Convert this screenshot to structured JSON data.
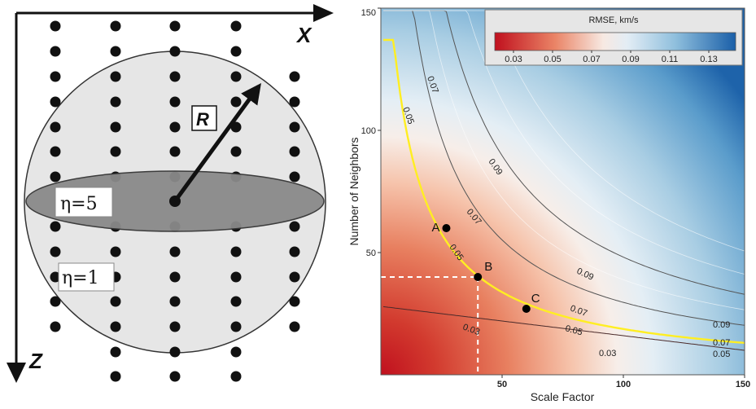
{
  "left_diagram": {
    "x_axis_label": "X",
    "z_axis_label": "Z",
    "radius_label": "R",
    "eta_inner_label": "η=5",
    "eta_outer_label": "η=1"
  },
  "right_chart": {
    "colorbar_title": "RMSE, km/s",
    "colorbar_ticks": [
      "0.03",
      "0.05",
      "0.07",
      "0.09",
      "0.11",
      "0.13"
    ],
    "xlabel": "Scale Factor",
    "ylabel": "Number of Neighbors",
    "x_ticks": [
      "50",
      "100",
      "150"
    ],
    "y_ticks": [
      "50",
      "100",
      "150"
    ],
    "points": [
      {
        "label": "A"
      },
      {
        "label": "B"
      },
      {
        "label": "C"
      }
    ],
    "contour_labels": [
      "0.07",
      "0.05",
      "0.09",
      "0.07",
      "0.05",
      "0.09",
      "0.07",
      "0.05",
      "0.03",
      "0.09",
      "0.07",
      "0.05",
      "0.03"
    ]
  },
  "chart_data": {
    "type": "heatmap",
    "title": "",
    "xlabel": "Scale Factor",
    "ylabel": "Number of Neighbors",
    "xlim": [
      0,
      150
    ],
    "ylim": [
      0,
      150
    ],
    "colorbar": {
      "label": "RMSE, km/s",
      "ticks": [
        0.03,
        0.05,
        0.07,
        0.09,
        0.11,
        0.13
      ],
      "colors": [
        "#c0101e",
        "#f7f7f7",
        "#1a5fa8"
      ]
    },
    "contour_levels": [
      0.03,
      0.05,
      0.07,
      0.09
    ],
    "highlight_contour": {
      "level": 0.05,
      "color": "#ffee22"
    },
    "points": [
      {
        "label": "A",
        "x": 27,
        "y": 60
      },
      {
        "label": "B",
        "x": 40,
        "y": 40
      },
      {
        "label": "C",
        "x": 60,
        "y": 27
      }
    ],
    "reference_lines": {
      "x": 40,
      "y": 40,
      "style": "dashed white"
    }
  }
}
